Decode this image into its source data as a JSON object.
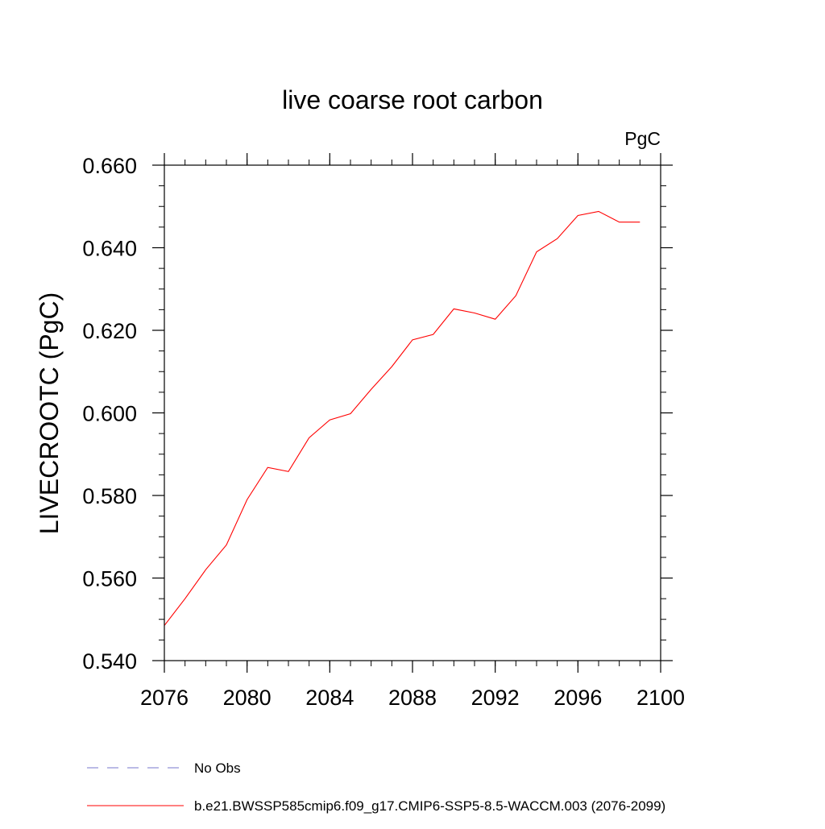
{
  "chart_data": {
    "type": "line",
    "title": "live coarse root carbon",
    "units_label": "PgC",
    "ylabel": "LIVECROOTC  (PgC)",
    "xlabel": "",
    "xlim": [
      2076,
      2100
    ],
    "ylim": [
      0.54,
      0.66
    ],
    "x_ticks": [
      2076,
      2080,
      2084,
      2088,
      2092,
      2096,
      2100
    ],
    "x_tick_labels": [
      "2076",
      "2080",
      "2084",
      "2088",
      "2092",
      "2096",
      "2100"
    ],
    "y_ticks": [
      0.54,
      0.56,
      0.58,
      0.6,
      0.62,
      0.64,
      0.66
    ],
    "y_tick_labels": [
      "0.540",
      "0.560",
      "0.580",
      "0.600",
      "0.620",
      "0.640",
      "0.660"
    ],
    "x_minor_step": 1,
    "y_minor_step": 0.005,
    "grid": false,
    "series": [
      {
        "name": "b.e21.BWSSP585cmip6.f09_g17.CMIP6-SSP5-8.5-WACCM.003 (2076-2099)",
        "color": "#ff0000",
        "dash": "solid",
        "x": [
          2076,
          2077,
          2078,
          2079,
          2080,
          2081,
          2082,
          2083,
          2084,
          2085,
          2086,
          2087,
          2088,
          2089,
          2090,
          2091,
          2092,
          2093,
          2094,
          2095,
          2096,
          2097,
          2098,
          2099
        ],
        "values": [
          0.5485,
          0.555,
          0.562,
          0.568,
          0.579,
          0.5868,
          0.5858,
          0.594,
          0.5983,
          0.5998,
          0.6057,
          0.6112,
          0.6177,
          0.619,
          0.6252,
          0.6242,
          0.6227,
          0.6284,
          0.639,
          0.6422,
          0.6478,
          0.6488,
          0.6462,
          0.6462
        ]
      }
    ],
    "legend": {
      "placement": "bottom-left",
      "entries": [
        {
          "label": "No Obs",
          "color": "#7777cc",
          "dash": "dashed"
        },
        {
          "label": "b.e21.BWSSP585cmip6.f09_g17.CMIP6-SSP5-8.5-WACCM.003 (2076-2099)",
          "color": "#ff0000",
          "dash": "solid"
        }
      ]
    }
  }
}
